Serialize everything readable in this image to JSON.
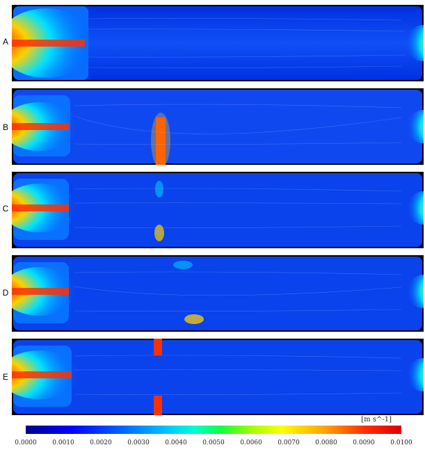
{
  "panels": [
    {
      "label": "A"
    },
    {
      "label": "B"
    },
    {
      "label": "C"
    },
    {
      "label": "D"
    },
    {
      "label": "E"
    }
  ],
  "colorbar": {
    "unit": "[m s^-1]",
    "ticks": [
      "0.0000",
      "0.0010",
      "0.0020",
      "0.0030",
      "0.0040",
      "0.0050",
      "0.0060",
      "0.0070",
      "0.0080",
      "0.0090",
      "0.0100"
    ],
    "colors": [
      "#00008f",
      "#0000ff",
      "#00c8ff",
      "#10ff40",
      "#ffff00",
      "#ff3000",
      "#e00000"
    ]
  }
}
